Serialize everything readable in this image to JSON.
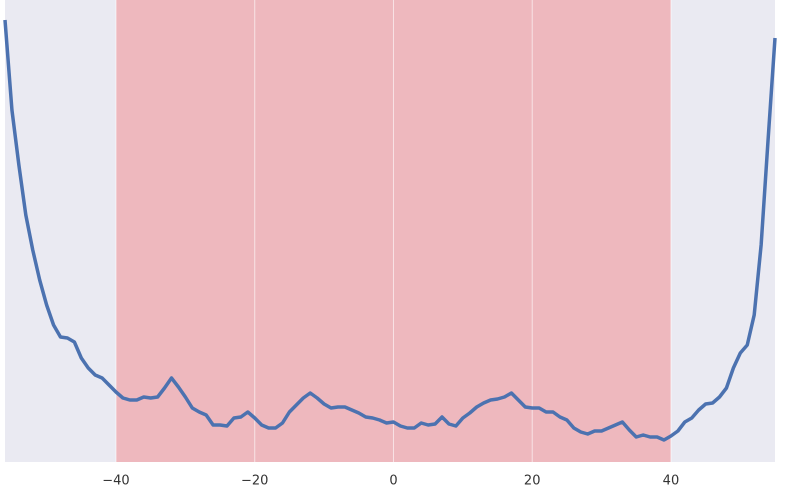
{
  "chart_data": {
    "type": "line",
    "x": [
      -56,
      -55,
      -54,
      -53,
      -52,
      -51,
      -50,
      -49,
      -48,
      -47,
      -46,
      -45,
      -44,
      -43,
      -42,
      -41,
      -40,
      -39,
      -38,
      -37,
      -36,
      -35,
      -34,
      -33,
      -32,
      -31,
      -30,
      -29,
      -28,
      -27,
      -26,
      -25,
      -24,
      -23,
      -22,
      -21,
      -20,
      -19,
      -18,
      -17,
      -16,
      -15,
      -14,
      -13,
      -12,
      -11,
      -10,
      -9,
      -8,
      -7,
      -6,
      -5,
      -4,
      -3,
      -2,
      -1,
      0,
      1,
      2,
      3,
      4,
      5,
      6,
      7,
      8,
      9,
      10,
      11,
      12,
      13,
      14,
      15,
      16,
      17,
      18,
      19,
      20,
      21,
      22,
      23,
      24,
      25,
      26,
      27,
      28,
      29,
      30,
      31,
      32,
      33,
      34,
      35,
      36,
      37,
      38,
      39,
      40,
      41,
      42,
      43,
      44,
      45,
      46,
      47,
      48,
      49,
      50,
      51,
      52,
      53,
      54,
      55
    ],
    "series": [
      {
        "color": "#4c72b0",
        "values": [
          442,
          352,
          297,
          247,
          212,
          182,
          157,
          137,
          125,
          124,
          120,
          104,
          94,
          87,
          84,
          77,
          70,
          64,
          62,
          62,
          65,
          64,
          65,
          74,
          84,
          75,
          65,
          54,
          50,
          47,
          37,
          37,
          36,
          44,
          45,
          50,
          44,
          37,
          34,
          34,
          39,
          50,
          57,
          64,
          69,
          64,
          58,
          54,
          55,
          55,
          52,
          49,
          45,
          44,
          42,
          39,
          40,
          36,
          34,
          34,
          39,
          37,
          38,
          45,
          38,
          36,
          44,
          49,
          55,
          59,
          62,
          63,
          65,
          69,
          62,
          55,
          54,
          54,
          50,
          50,
          45,
          42,
          34,
          30,
          28,
          31,
          31,
          34,
          37,
          40,
          32,
          25,
          27,
          25,
          25,
          22,
          26,
          31,
          40,
          44,
          52,
          58,
          59,
          65,
          74,
          94,
          109,
          117,
          147,
          217,
          322,
          424
        ]
      }
    ],
    "span": [
      -40,
      40
    ],
    "span_color": "#eeb8be",
    "background": "#eaeaf2",
    "grid": true,
    "xlim": [
      -56,
      55
    ],
    "ylim": [
      0,
      462
    ],
    "xticks": [
      {
        "value": -40,
        "label": "−40"
      },
      {
        "value": -20,
        "label": "−20"
      },
      0,
      20,
      40
    ]
  }
}
